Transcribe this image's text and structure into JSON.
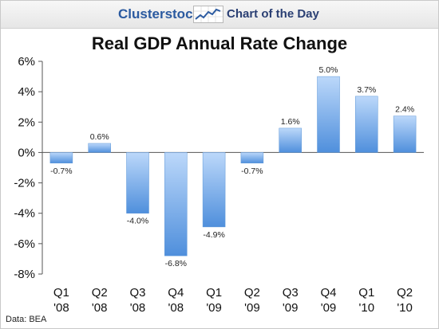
{
  "header": {
    "brand": "Clusterstock",
    "tagline": "Chart of the Day",
    "logo_icon": "trend-line-chart-icon",
    "brand_color": "#2b5aa0"
  },
  "chart_data": {
    "type": "bar",
    "title": "Real GDP Annual Rate Change",
    "xlabel": "",
    "ylabel": "",
    "categories": [
      [
        "Q1",
        "'08"
      ],
      [
        "Q2",
        "'08"
      ],
      [
        "Q3",
        "'08"
      ],
      [
        "Q4",
        "'08"
      ],
      [
        "Q1",
        "'09"
      ],
      [
        "Q2",
        "'09"
      ],
      [
        "Q3",
        "'09"
      ],
      [
        "Q4",
        "'09"
      ],
      [
        "Q1",
        "'10"
      ],
      [
        "Q2",
        "'10"
      ]
    ],
    "values": [
      -0.7,
      0.6,
      -4.0,
      -6.8,
      -4.9,
      -0.7,
      1.6,
      5.0,
      3.7,
      2.4
    ],
    "data_labels": [
      "-0.7%",
      "0.6%",
      "-4.0%",
      "-6.8%",
      "-4.9%",
      "-0.7%",
      "1.6%",
      "5.0%",
      "3.7%",
      "2.4%"
    ],
    "ylim": [
      -8,
      6
    ],
    "yticks": [
      6,
      4,
      2,
      0,
      -2,
      -4,
      -6,
      -8
    ],
    "ytick_labels": [
      "6%",
      "4%",
      "2%",
      "0%",
      "-2%",
      "-4%",
      "-6%",
      "-8%"
    ],
    "grid": false,
    "legend": "none",
    "bar_color_top": "#bcd8fa",
    "bar_color_bottom": "#4f8fdc"
  },
  "footer": {
    "source": "Data: BEA"
  }
}
